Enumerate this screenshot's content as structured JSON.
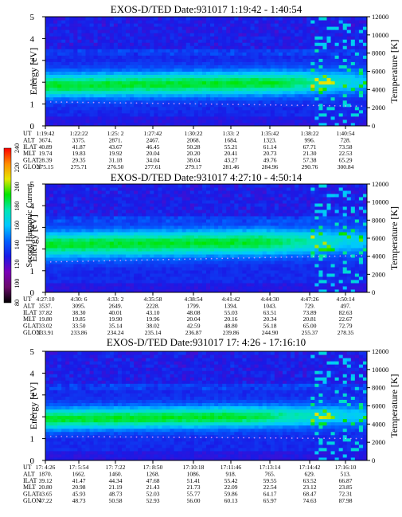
{
  "chart_data": [
    {
      "type": "heatmap",
      "title": "EXOS-D/TED   Date:931017  1:19:42 - 1:40:54",
      "ylabel": "Energy [eV]",
      "y2label": "Temperature [K]",
      "ylim": [
        0,
        5
      ],
      "yticks": [
        "0",
        "1",
        "2",
        "3",
        "4",
        "5"
      ],
      "y2lim": [
        0,
        12000
      ],
      "y2ticks": [
        "0",
        "2000",
        "4000",
        "6000",
        "8000",
        "10000",
        "12000"
      ],
      "band": {
        "center": 1.95,
        "width": 0.55,
        "fade_from": 0.72,
        "faint": [
          1.1,
          0.9
        ]
      },
      "table_rows": [
        "UT",
        "ALT",
        "ILAT",
        "MLT",
        "GLAT",
        "GLON"
      ],
      "table": [
        [
          "1:19:42",
          "3674.",
          "40.89",
          "19.74",
          "28.39",
          "275.15"
        ],
        [
          "1:22:22",
          "3375.",
          "41.87",
          "19.83",
          "29.35",
          "275.71"
        ],
        [
          "1:25: 2",
          "2871.",
          "43.67",
          "19.92",
          "31.18",
          "276.50"
        ],
        [
          "1:27:42",
          "2467.",
          "46.45",
          "20.04",
          "34.04",
          "277.61"
        ],
        [
          "1:30:22",
          "2068.",
          "50.28",
          "20.20",
          "38.04",
          "279.17"
        ],
        [
          "1:33: 2",
          "1684.",
          "55.21",
          "20.41",
          "43.27",
          "281.46"
        ],
        [
          "1:35:42",
          "1323.",
          "61.14",
          "20.73",
          "49.76",
          "284.96"
        ],
        [
          "1:38:22",
          "996.",
          "67.71",
          "21.30",
          "57.38",
          "290.76"
        ],
        [
          "1:40:54",
          "728.",
          "73.58",
          "22.53",
          "65.29",
          "300.84"
        ]
      ]
    },
    {
      "type": "heatmap",
      "title": "EXOS-D/TED   Date:931017  4:27:10 - 4:50:14",
      "ylabel": "Energy [eV]",
      "y2label": "Temperature [K]",
      "ylim": [
        0,
        5
      ],
      "yticks": [
        "0",
        "1",
        "2",
        "3",
        "4",
        "5"
      ],
      "y2lim": [
        0,
        12000
      ],
      "y2ticks": [
        "0",
        "2000",
        "4000",
        "6000",
        "8000",
        "10000",
        "12000"
      ],
      "band": {
        "center": 2.3,
        "width": 0.6,
        "fade_from": 0.66,
        "faint": [
          1.4,
          1.7
        ]
      },
      "table_rows": [
        "UT",
        "ALT",
        "ILAT",
        "MLT",
        "GLAT",
        "GLON"
      ],
      "table": [
        [
          "4:27:10",
          "3537.",
          "37.82",
          "19.80",
          "33.02",
          "233.91"
        ],
        [
          "4:30: 6",
          "3095.",
          "38.30",
          "19.85",
          "33.50",
          "233.86"
        ],
        [
          "4:33: 2",
          "2649.",
          "40.01",
          "19.90",
          "35.14",
          "234.24"
        ],
        [
          "4:35:58",
          "2228.",
          "43.10",
          "19.96",
          "38.02",
          "235.14"
        ],
        [
          "4:38:54",
          "1799.",
          "48.08",
          "20.04",
          "42.59",
          "236.87"
        ],
        [
          "4:41:42",
          "1394.",
          "55.03",
          "20.16",
          "48.80",
          "239.86"
        ],
        [
          "4:44:30",
          "1043.",
          "63.51",
          "20.34",
          "56.18",
          "244.90"
        ],
        [
          "4:47:26",
          "729.",
          "73.89",
          "20.81",
          "65.00",
          "255.37"
        ],
        [
          "4:50:14",
          "497.",
          "82.63",
          "22.67",
          "72.79",
          "278.35"
        ]
      ]
    },
    {
      "type": "heatmap",
      "title": "EXOS-D/TED   Date:931017  17: 4:26 - 17:16:10",
      "ylabel": "Energy [eV]",
      "y2label": "Temperature [K]",
      "ylim": [
        0,
        5
      ],
      "yticks": [
        "0",
        "1",
        "2",
        "3",
        "4",
        "5"
      ],
      "y2lim": [
        0,
        12000
      ],
      "y2ticks": [
        "0",
        "2000",
        "4000",
        "6000",
        "8000",
        "10000",
        "12000"
      ],
      "band": {
        "center": 2.0,
        "width": 0.5,
        "fade_from": 0.6,
        "faint": [
          1.1,
          1.0
        ]
      },
      "table_rows": [
        "UT",
        "ALT",
        "ILAT",
        "MLT",
        "GLAT",
        "GLON"
      ],
      "table": [
        [
          "17: 4:26",
          "1870.",
          "39.12",
          "20.80",
          "43.65",
          "47.22"
        ],
        [
          "17: 5:54",
          "1662.",
          "41.47",
          "20.98",
          "45.93",
          "48.73"
        ],
        [
          "17: 7:22",
          "1460.",
          "44.34",
          "21.19",
          "48.73",
          "50.58"
        ],
        [
          "17: 8:50",
          "1268.",
          "47.68",
          "21.43",
          "52.03",
          "52.93"
        ],
        [
          "17:10:18",
          "1086.",
          "51.41",
          "21.73",
          "55.77",
          "56.00"
        ],
        [
          "17:11:46",
          "918.",
          "55.42",
          "22.09",
          "59.86",
          "60.13"
        ],
        [
          "17:13:14",
          "765.",
          "59.55",
          "22.54",
          "64.17",
          "65.97"
        ],
        [
          "17:14:42",
          "629.",
          "63.52",
          "23.12",
          "68.47",
          "74.63"
        ],
        [
          "17:16:10",
          "513.",
          "66.87",
          "23.85",
          "72.31",
          "87.98"
        ]
      ]
    }
  ],
  "colorbar": {
    "label": "Second Harmonic Current",
    "ticks": [
      "80",
      "100",
      "120",
      "140",
      "160",
      "180",
      "200",
      "220",
      "240"
    ],
    "range": [
      80,
      240
    ],
    "colors": [
      "#000000",
      "#6a0a6a",
      "#7a00b8",
      "#1a1ae6",
      "#0060ff",
      "#00c8ff",
      "#00e6b4",
      "#00e600",
      "#e6e600",
      "#ff8c00",
      "#ff0000"
    ]
  }
}
